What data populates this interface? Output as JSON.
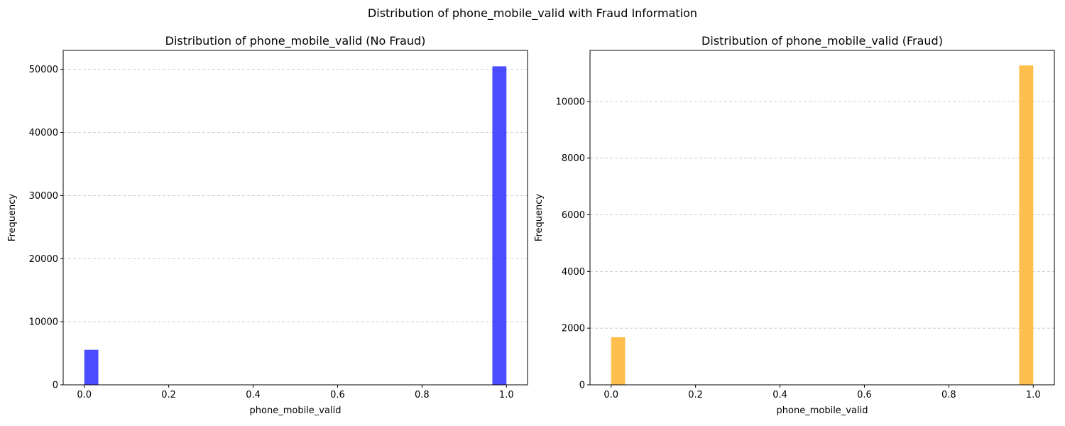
{
  "figure": {
    "suptitle": "Distribution of phone_mobile_valid with Fraud Information"
  },
  "chart_data": [
    {
      "type": "bar",
      "title": "Distribution of phone_mobile_valid (No Fraud)",
      "xlabel": "phone_mobile_valid",
      "ylabel": "Frequency",
      "color": "#4b4bff",
      "x": [
        0.0,
        1.0
      ],
      "values": [
        5550,
        50480
      ],
      "bin_width": 0.0333,
      "xlim": [
        -0.05,
        1.05
      ],
      "ylim": [
        0,
        53000
      ],
      "xticks": [
        0.0,
        0.2,
        0.4,
        0.6,
        0.8,
        1.0
      ],
      "xtick_labels": [
        "0.0",
        "0.2",
        "0.4",
        "0.6",
        "0.8",
        "1.0"
      ],
      "yticks": [
        0,
        10000,
        20000,
        30000,
        40000,
        50000
      ],
      "ytick_labels": [
        "0",
        "10000",
        "20000",
        "30000",
        "40000",
        "50000"
      ],
      "grid": "y-dashed"
    },
    {
      "type": "bar",
      "title": "Distribution of phone_mobile_valid (Fraud)",
      "xlabel": "phone_mobile_valid",
      "ylabel": "Frequency",
      "color": "#ffbf4d",
      "x": [
        0.0,
        1.0
      ],
      "values": [
        1680,
        11270
      ],
      "bin_width": 0.0333,
      "xlim": [
        -0.05,
        1.05
      ],
      "ylim": [
        0,
        11800
      ],
      "xticks": [
        0.0,
        0.2,
        0.4,
        0.6,
        0.8,
        1.0
      ],
      "xtick_labels": [
        "0.0",
        "0.2",
        "0.4",
        "0.6",
        "0.8",
        "1.0"
      ],
      "yticks": [
        0,
        2000,
        4000,
        6000,
        8000,
        10000
      ],
      "ytick_labels": [
        "0",
        "2000",
        "4000",
        "6000",
        "8000",
        "10000"
      ],
      "grid": "y-dashed"
    }
  ]
}
